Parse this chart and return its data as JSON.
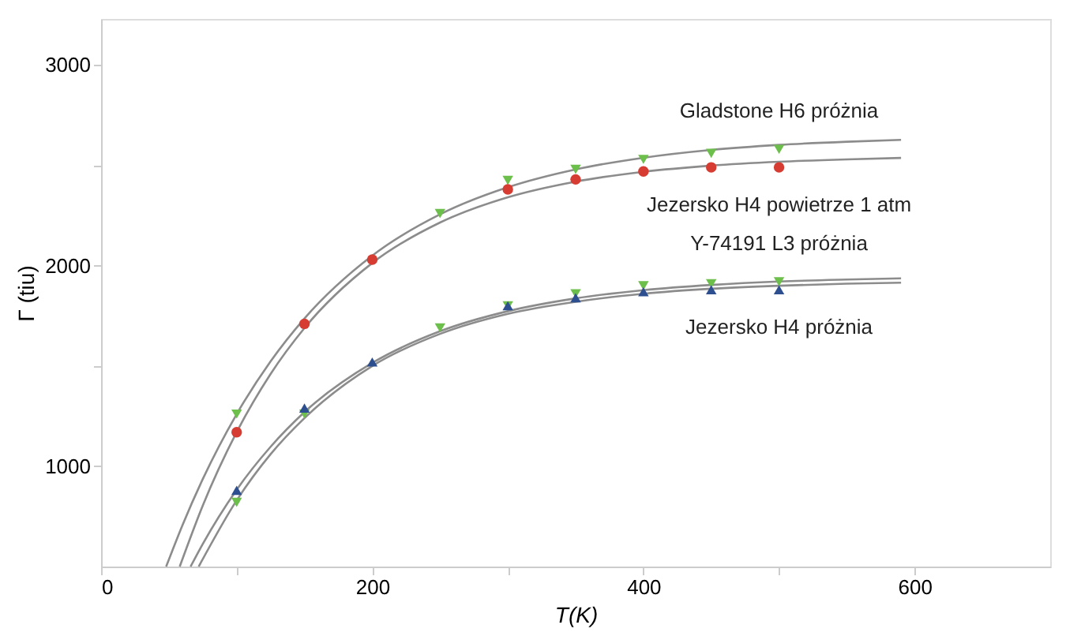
{
  "chart_data": {
    "type": "scatter",
    "xlabel": "T(K)",
    "ylabel": "Γ (tiu)",
    "xlim": [
      0,
      700
    ],
    "ylim": [
      500,
      3230
    ],
    "xticks": [
      0,
      {
        "value": 100,
        "label": null
      },
      200,
      {
        "value": 300,
        "label": null
      },
      400,
      {
        "value": 500,
        "label": null
      },
      600
    ],
    "yticks": [
      1000,
      {
        "value": 1500,
        "label": null
      },
      2000,
      {
        "value": 2500,
        "label": null
      },
      3000
    ],
    "grid": false,
    "legend": false,
    "series": [
      {
        "type": "line",
        "color": "#8c8c8c",
        "x": [
          48,
          60,
          75,
          100,
          125,
          150,
          200,
          250,
          300,
          350,
          400,
          450,
          500,
          550,
          590
        ],
        "values": [
          500,
          706,
          936,
          1260,
          1523,
          1737,
          2050,
          2256,
          2391,
          2480,
          2538,
          2577,
          2602,
          2618,
          2627
        ]
      },
      {
        "type": "line",
        "color": "#8c8c8c",
        "x": [
          58,
          75,
          100,
          125,
          150,
          200,
          250,
          300,
          350,
          400,
          450,
          500,
          550,
          590
        ],
        "values": [
          500,
          804,
          1170,
          1460,
          1689,
          2013,
          2215,
          2341,
          2419,
          2468,
          2499,
          2518,
          2530,
          2537
        ]
      },
      {
        "type": "line",
        "color": "#8c8c8c",
        "x": [
          66,
          75,
          100,
          125,
          150,
          200,
          250,
          300,
          350,
          400,
          450,
          500,
          550,
          590
        ],
        "values": [
          500,
          613,
          883,
          1097,
          1270,
          1515,
          1673,
          1773,
          1837,
          1878,
          1904,
          1921,
          1931,
          1937
        ]
      },
      {
        "type": "line",
        "color": "#8c8c8c",
        "x": [
          72,
          100,
          125,
          150,
          200,
          250,
          300,
          350,
          400,
          450,
          500,
          550,
          590
        ],
        "values": [
          500,
          830,
          1060,
          1240,
          1500,
          1660,
          1760,
          1820,
          1860,
          1885,
          1900,
          1910,
          1915
        ]
      },
      {
        "name": "Gladstone H6 próżnia",
        "color": "#6cbf4a",
        "marker": "triangle-down",
        "x": [
          100,
          250,
          300,
          350,
          400,
          450,
          500
        ],
        "values": [
          1260,
          2260,
          2425,
          2480,
          2530,
          2560,
          2580
        ]
      },
      {
        "name": "Jezersko H4 powietrze 1 atm",
        "color": "#d63c32",
        "marker": "circle",
        "x": [
          100,
          150,
          200,
          300,
          350,
          400,
          450,
          500
        ],
        "values": [
          1170,
          1710,
          2030,
          2380,
          2430,
          2470,
          2490,
          2490
        ]
      },
      {
        "name": "Y-74191 L3 próżnia",
        "color": "#6cbf4a",
        "marker": "triangle-down",
        "x": [
          100,
          150,
          250,
          300,
          350,
          400,
          450,
          500
        ],
        "values": [
          820,
          1260,
          1690,
          1800,
          1860,
          1900,
          1910,
          1920
        ]
      },
      {
        "name": "Jezersko H4 próżnia",
        "color": "#2e4f8f",
        "marker": "triangle",
        "x": [
          100,
          150,
          200,
          300,
          350,
          400,
          450,
          500
        ],
        "values": [
          880,
          1290,
          1520,
          1800,
          1840,
          1870,
          1880,
          1880
        ]
      }
    ]
  }
}
